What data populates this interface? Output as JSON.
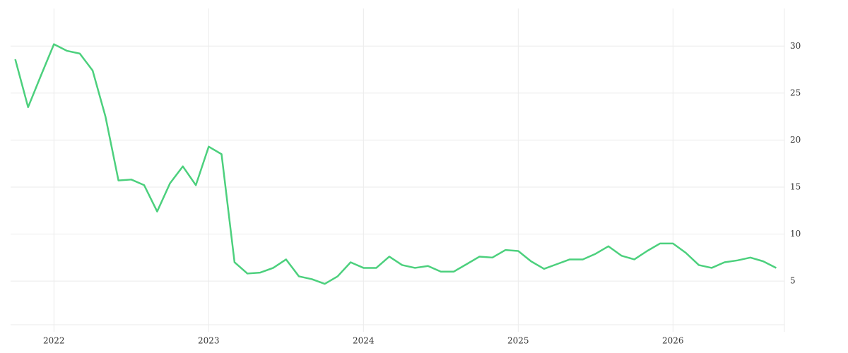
{
  "chart_data": {
    "type": "line",
    "x": [
      2021.75,
      2021.833,
      2021.917,
      2022,
      2022.083,
      2022.167,
      2022.25,
      2022.333,
      2022.417,
      2022.5,
      2022.583,
      2022.667,
      2022.75,
      2022.833,
      2022.917,
      2023,
      2023.083,
      2023.167,
      2023.25,
      2023.333,
      2023.417,
      2023.5,
      2023.583,
      2023.667,
      2023.75,
      2023.833,
      2023.917,
      2024,
      2024.083,
      2024.167,
      2024.25,
      2024.333,
      2024.417,
      2024.5,
      2024.583,
      2024.667,
      2024.75,
      2024.833,
      2024.917,
      2025,
      2025.083,
      2025.167,
      2025.25,
      2025.333,
      2025.417,
      2025.5,
      2025.583,
      2025.667,
      2025.75,
      2025.833,
      2025.917,
      2026,
      2026.083,
      2026.167,
      2026.25,
      2026.333,
      2026.417,
      2026.5,
      2026.583,
      2026.667
    ],
    "series": [
      {
        "color": "#4cd07d",
        "values": [
          28.6,
          23.5,
          26.9,
          30.2,
          29.5,
          29.2,
          27.4,
          22.5,
          15.7,
          15.8,
          15.2,
          12.4,
          15.4,
          17.2,
          15.2,
          19.3,
          18.5,
          7.0,
          5.8,
          5.9,
          6.4,
          7.3,
          5.5,
          5.2,
          4.7,
          5.5,
          7.0,
          6.4,
          6.4,
          7.6,
          6.7,
          6.4,
          6.6,
          6.0,
          6.0,
          6.8,
          7.6,
          7.5,
          8.3,
          8.2,
          7.1,
          6.3,
          6.8,
          7.3,
          7.3,
          7.9,
          8.7,
          7.7,
          7.3,
          8.2,
          9.0,
          9.0,
          8.0,
          6.7,
          6.4,
          7.0,
          7.2,
          7.5,
          7.1,
          6.4
        ]
      }
    ],
    "xlim": [
      2021.72,
      2026.72
    ],
    "xticks": [
      2022,
      2023,
      2024,
      2025,
      2026
    ],
    "ylim": [
      0.35,
      34
    ],
    "yticks": [
      5,
      10,
      15,
      20,
      25,
      30
    ],
    "grid": true,
    "y_axis_side": "right"
  }
}
